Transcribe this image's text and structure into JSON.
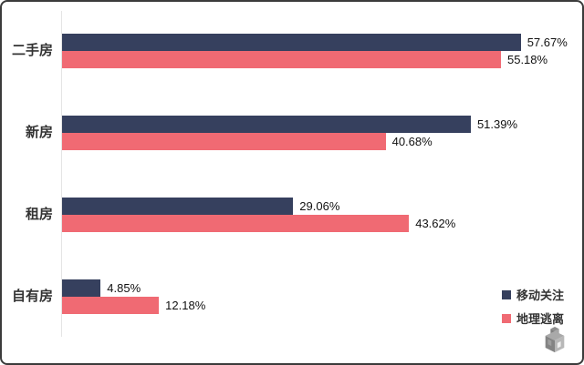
{
  "chart_data": {
    "type": "bar",
    "orientation": "horizontal",
    "title": "",
    "xlabel": "",
    "ylabel": "",
    "categories": [
      "二手房",
      "新房",
      "租房",
      "自有房"
    ],
    "series": [
      {
        "name": "移动关注",
        "color": "#36405E",
        "values": [
          57.67,
          51.39,
          29.06,
          4.85
        ]
      },
      {
        "name": "地理逃离",
        "color": "#F06A73",
        "values": [
          55.18,
          40.68,
          43.62,
          12.18
        ]
      }
    ],
    "value_suffix": "%",
    "xlim": [
      0,
      60
    ],
    "grid": "off",
    "legend_position": "bottom-right"
  },
  "colors": {
    "axis_line": "#e4e4e4",
    "label_text": "#333333",
    "value_text": "#111111",
    "frame_border": "#3b3b3b",
    "logo_gray": "#9a9a9a"
  },
  "icons": {
    "logo": "cube-brick-logo"
  }
}
